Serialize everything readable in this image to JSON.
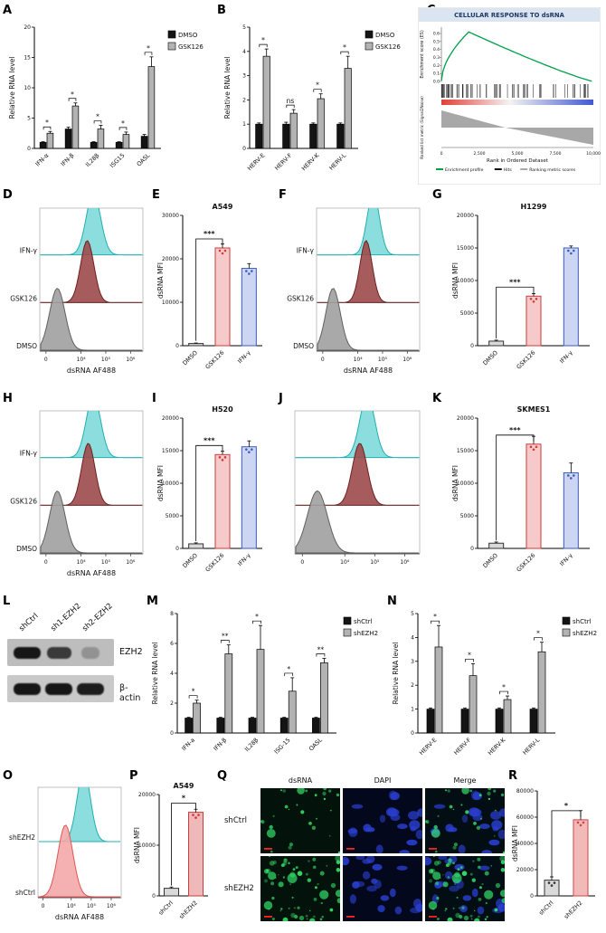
{
  "panel_labels": {
    "A": "A",
    "B": "B",
    "C": "C",
    "D": "D",
    "E": "E",
    "F": "F",
    "G": "G",
    "H": "H",
    "I": "I",
    "J": "J",
    "K": "K",
    "L": "L",
    "M": "M",
    "N": "N",
    "O": "O",
    "P": "P",
    "Q": "Q",
    "R": "R"
  },
  "chart_data": [
    {
      "panel": "A",
      "type": "bar",
      "ylabel": "Relative RNA level",
      "ylim": [
        0,
        20
      ],
      "yticks": [
        0,
        5,
        10,
        15,
        20
      ],
      "legend": true,
      "categories": [
        "IFN-α",
        "IFN-β",
        "IL28β",
        "ISG15",
        "OASL"
      ],
      "series": [
        {
          "name": "DMSO",
          "fill": "#141414",
          "values": [
            1.0,
            3.2,
            1.0,
            1.0,
            2.0
          ],
          "err": [
            0.1,
            0.3,
            0.1,
            0.1,
            0.3
          ]
        },
        {
          "name": "GSK126",
          "fill": "#b3b3b3",
          "values": [
            2.5,
            7.0,
            3.2,
            2.3,
            13.5
          ],
          "err": [
            0.3,
            0.5,
            0.6,
            0.4,
            1.6
          ]
        }
      ],
      "sig": [
        "*",
        "*",
        "*",
        "*",
        "*"
      ]
    },
    {
      "panel": "B",
      "type": "bar",
      "ylabel": "Relative RNA level",
      "ylim": [
        0,
        5
      ],
      "yticks": [
        0,
        1,
        2,
        3,
        4,
        5
      ],
      "legend": true,
      "categories": [
        "HERV-E",
        "HERV-F",
        "HERV-K",
        "HERV-L"
      ],
      "series": [
        {
          "name": "DMSO",
          "fill": "#141414",
          "values": [
            1.0,
            1.0,
            1.0,
            1.0
          ],
          "err": [
            0.05,
            0.08,
            0.05,
            0.05
          ]
        },
        {
          "name": "GSK126",
          "fill": "#b3b3b3",
          "values": [
            3.8,
            1.45,
            2.05,
            3.3
          ],
          "err": [
            0.3,
            0.15,
            0.2,
            0.5
          ]
        }
      ],
      "sig": [
        "*",
        "ns",
        "*",
        "*"
      ]
    },
    {
      "panel": "E",
      "type": "bar",
      "title": "A549",
      "ylabel": "dsRNA MFI",
      "ylim": [
        0,
        30000
      ],
      "yticks": [
        0,
        10000,
        20000,
        30000
      ],
      "categories": [
        "DMSO",
        "GSK126",
        "IFN-γ"
      ],
      "bars": [
        {
          "value": 500,
          "err": 120,
          "fill": "#d9d9d9",
          "edge": "#333333"
        },
        {
          "value": 22500,
          "err": 900,
          "fill": "#f6caca",
          "edge": "#d03a3a"
        },
        {
          "value": 17800,
          "err": 1100,
          "fill": "#ccd6f2",
          "edge": "#3d5bbf"
        }
      ],
      "sig": {
        "a": 0,
        "b": 1,
        "label": "***"
      }
    },
    {
      "panel": "G",
      "type": "bar",
      "title": "H1299",
      "ylabel": "dsRNA MFI",
      "ylim": [
        0,
        20000
      ],
      "yticks": [
        0,
        5000,
        10000,
        15000,
        20000
      ],
      "categories": [
        "DMSO",
        "GSK126",
        "IFN-γ"
      ],
      "bars": [
        {
          "value": 700,
          "err": 150,
          "fill": "#d9d9d9",
          "edge": "#333333"
        },
        {
          "value": 7600,
          "err": 400,
          "fill": "#f6caca",
          "edge": "#d03a3a"
        },
        {
          "value": 15000,
          "err": 300,
          "fill": "#ccd6f2",
          "edge": "#3d5bbf"
        }
      ],
      "sig": {
        "a": 0,
        "b": 1,
        "label": "***"
      }
    },
    {
      "panel": "I",
      "type": "bar",
      "title": "H520",
      "ylabel": "dsRNA MFI",
      "ylim": [
        0,
        20000
      ],
      "yticks": [
        0,
        5000,
        10000,
        15000,
        20000
      ],
      "categories": [
        "DMSO",
        "GSK126",
        "IFN-γ"
      ],
      "bars": [
        {
          "value": 700,
          "err": 150,
          "fill": "#d9d9d9",
          "edge": "#333333"
        },
        {
          "value": 14400,
          "err": 500,
          "fill": "#f6caca",
          "edge": "#d03a3a"
        },
        {
          "value": 15600,
          "err": 900,
          "fill": "#ccd6f2",
          "edge": "#3d5bbf"
        }
      ],
      "sig": {
        "a": 0,
        "b": 1,
        "label": "***"
      }
    },
    {
      "panel": "K",
      "type": "bar",
      "title": "SKMES1",
      "ylabel": "dsRNA MFI",
      "ylim": [
        0,
        20000
      ],
      "yticks": [
        0,
        5000,
        10000,
        15000,
        20000
      ],
      "categories": [
        "DMSO",
        "GSK126",
        "IFN-γ"
      ],
      "bars": [
        {
          "value": 800,
          "err": 180,
          "fill": "#d9d9d9",
          "edge": "#333333"
        },
        {
          "value": 16000,
          "err": 1200,
          "fill": "#f6caca",
          "edge": "#d03a3a"
        },
        {
          "value": 11600,
          "err": 1500,
          "fill": "#ccd6f2",
          "edge": "#3d5bbf"
        }
      ],
      "sig": {
        "a": 0,
        "b": 1,
        "label": "***"
      }
    },
    {
      "panel": "M",
      "type": "bar",
      "ylabel": "Relative RNA level",
      "ylim": [
        0,
        8
      ],
      "yticks": [
        0,
        2,
        4,
        6,
        8
      ],
      "legend": true,
      "categories": [
        "IFN-a",
        "IFN-β",
        "IL28β",
        "ISG-15",
        "OASL"
      ],
      "series": [
        {
          "name": "shCtrl",
          "fill": "#141414",
          "values": [
            1.0,
            1.0,
            1.0,
            1.0,
            1.0
          ],
          "err": [
            0.05,
            0.05,
            0.05,
            0.05,
            0.05
          ]
        },
        {
          "name": "shEZH2",
          "fill": "#b3b3b3",
          "values": [
            2.0,
            5.3,
            5.6,
            2.8,
            4.7
          ],
          "err": [
            0.2,
            0.6,
            1.6,
            0.9,
            0.3
          ]
        }
      ],
      "sig": [
        "*",
        "**",
        "*",
        "*",
        "**"
      ]
    },
    {
      "panel": "N",
      "type": "bar",
      "ylabel": "Relative RNA level",
      "ylim": [
        0,
        5
      ],
      "yticks": [
        0,
        1,
        2,
        3,
        4,
        5
      ],
      "legend": true,
      "categories": [
        "HERV-E",
        "HERV-F",
        "HERV-K",
        "HERV-L"
      ],
      "series": [
        {
          "name": "shCtrl",
          "fill": "#141414",
          "values": [
            1.0,
            1.0,
            1.0,
            1.0
          ],
          "err": [
            0.05,
            0.05,
            0.05,
            0.05
          ]
        },
        {
          "name": "shEZH2",
          "fill": "#b3b3b3",
          "values": [
            3.6,
            2.4,
            1.4,
            3.4
          ],
          "err": [
            0.9,
            0.5,
            0.15,
            0.4
          ]
        }
      ],
      "sig": [
        "*",
        "*",
        "*",
        "*"
      ]
    },
    {
      "panel": "P",
      "type": "bar",
      "title": "A549",
      "ylabel": "dsRNA MFI",
      "ylim": [
        0,
        20000
      ],
      "yticks": [
        0,
        10000,
        20000
      ],
      "categories": [
        "shCtrl",
        "shEZH2"
      ],
      "bars": [
        {
          "value": 1500,
          "err": 250,
          "fill": "#d9d9d9",
          "edge": "#333333"
        },
        {
          "value": 16500,
          "err": 600,
          "fill": "#f0b9b9",
          "edge": "#d03a3a"
        }
      ],
      "sig": {
        "a": 0,
        "b": 1,
        "label": "*"
      }
    },
    {
      "panel": "R",
      "type": "bar",
      "ylabel": "dsRNA MFI",
      "ylim": [
        0,
        80000
      ],
      "yticks": [
        0,
        20000,
        40000,
        60000,
        80000
      ],
      "categories": [
        "shCtrl",
        "shEZH2"
      ],
      "bars": [
        {
          "value": 12000,
          "err": 2500,
          "fill": "#d9d9d9",
          "edge": "#333333"
        },
        {
          "value": 58000,
          "err": 7000,
          "fill": "#f2b9b9",
          "edge": "#d04545"
        }
      ],
      "sig": {
        "a": 0,
        "b": 1,
        "label": "*"
      }
    }
  ],
  "flow": {
    "D": {
      "xlabel": "dsRNA AF488",
      "xticks": [
        {
          "t": "0",
          "p": 0.06
        },
        {
          "t": "10⁴",
          "p": 0.4
        },
        {
          "t": "10⁵",
          "p": 0.64
        },
        {
          "t": "10⁶",
          "p": 0.88
        }
      ],
      "curves": [
        {
          "name": "IFN-γ",
          "fill": "#7fd9d9",
          "edge": "#1fb0b0",
          "peak": 0.52,
          "width": 0.07
        },
        {
          "name": "GSK126",
          "fill": "#9c4a4a",
          "edge": "#6d2020",
          "peak": 0.46,
          "width": 0.065
        },
        {
          "name": "DMSO",
          "fill": "#a0a0a0",
          "edge": "#606060",
          "peak": 0.17,
          "width": 0.075
        }
      ]
    },
    "F": {
      "xlabel": "dsRNA AF488",
      "xticks": [
        {
          "t": "0",
          "p": 0.06
        },
        {
          "t": "10⁴",
          "p": 0.4
        },
        {
          "t": "10⁵",
          "p": 0.64
        },
        {
          "t": "10⁶",
          "p": 0.88
        }
      ],
      "curves": [
        {
          "name": "IFN-γ",
          "fill": "#7fd9d9",
          "edge": "#1fb0b0",
          "peak": 0.55,
          "width": 0.06
        },
        {
          "name": "GSK126",
          "fill": "#9c4a4a",
          "edge": "#6d2020",
          "peak": 0.48,
          "width": 0.06
        },
        {
          "name": "DMSO",
          "fill": "#a0a0a0",
          "edge": "#606060",
          "peak": 0.16,
          "width": 0.07
        }
      ]
    },
    "H": {
      "xlabel": "dsRNA AF488",
      "xticks": [
        {
          "t": "0",
          "p": 0.06
        },
        {
          "t": "10⁴",
          "p": 0.4
        },
        {
          "t": "10⁵",
          "p": 0.64
        },
        {
          "t": "10⁶",
          "p": 0.88
        }
      ],
      "curves": [
        {
          "name": "IFN-γ",
          "fill": "#7fd9d9",
          "edge": "#1fb0b0",
          "peak": 0.52,
          "width": 0.07
        },
        {
          "name": "GSK126",
          "fill": "#9c4a4a",
          "edge": "#6d2020",
          "peak": 0.47,
          "width": 0.065
        },
        {
          "name": "DMSO",
          "fill": "#a0a0a0",
          "edge": "#606060",
          "peak": 0.17,
          "width": 0.075
        }
      ]
    },
    "J": {
      "xlabel": "",
      "xticks": [
        {
          "t": "0",
          "p": 0.06
        },
        {
          "t": "10⁴",
          "p": 0.4
        },
        {
          "t": "10⁵",
          "p": 0.64
        },
        {
          "t": "10⁶",
          "p": 0.88
        }
      ],
      "curves": [
        {
          "name": "",
          "fill": "#7fd9d9",
          "edge": "#1fb0b0",
          "peak": 0.58,
          "width": 0.06
        },
        {
          "name": "",
          "fill": "#9c4a4a",
          "edge": "#6d2020",
          "peak": 0.52,
          "width": 0.06
        },
        {
          "name": "",
          "fill": "#a0a0a0",
          "edge": "#606060",
          "peak": 0.18,
          "width": 0.08
        }
      ]
    },
    "O": {
      "xlabel": "dsRNA AF488",
      "xticks": [
        {
          "t": "0",
          "p": 0.06
        },
        {
          "t": "10⁴",
          "p": 0.4
        },
        {
          "t": "10⁵",
          "p": 0.64
        },
        {
          "t": "10⁶",
          "p": 0.88
        }
      ],
      "curves": [
        {
          "name": "shEZH2",
          "fill": "#7fd9d9",
          "edge": "#1fb0b0",
          "peak": 0.55,
          "width": 0.08
        },
        {
          "name": "shCtrl",
          "fill": "#f4a9a9",
          "edge": "#e05555",
          "peak": 0.33,
          "width": 0.09
        }
      ]
    }
  },
  "gsea": {
    "title": "CELLULAR RESPONSE TO dsRNA",
    "es_label": "Enrichment score (ES)",
    "metric_label": "Ranked list metric (Signal2Noise)",
    "x_label": "Rank in Ordered Dataset",
    "xticks": [
      "0",
      "2,500",
      "5,000",
      "7,500",
      "10,000"
    ],
    "es_yticks": [
      0.0,
      0.1,
      0.2,
      0.3,
      0.4,
      0.5,
      0.6
    ],
    "legend": [
      "Enrichment profile",
      "Hits",
      "Ranking metric scores"
    ],
    "curve_color": "#00a14b",
    "peak": 0.62
  },
  "blot": {
    "lanes": [
      "shCtrl",
      "sh1-EZH2",
      "sh2-EZH2"
    ],
    "bands": [
      {
        "name": "EZH2",
        "intensities": [
          1.0,
          0.75,
          0.12
        ]
      },
      {
        "name": "β-actin",
        "intensities": [
          1.0,
          1.0,
          0.95
        ]
      }
    ]
  },
  "micro": {
    "cols": [
      "dsRNA",
      "DAPI",
      "Merge"
    ],
    "rows": [
      "shCtrl",
      "shEZH2"
    ],
    "green": "#35e06a",
    "blue": "#2a3fd0",
    "scalebar": "#ff2222"
  }
}
